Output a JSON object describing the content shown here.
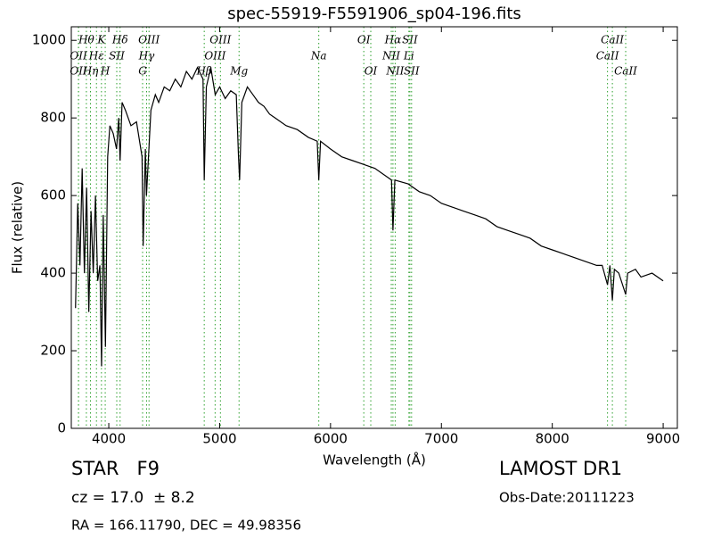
{
  "chart_data": {
    "type": "line",
    "title": "spec-55919-F5591906_sp04-196.fits",
    "x_label": "Wavelength (Å)",
    "y_label": "Flux (relative)",
    "xlim": [
      3662,
      9128
    ],
    "ylim": [
      0,
      1035
    ],
    "xticks": [
      4000,
      5000,
      6000,
      7000,
      8000,
      9000
    ],
    "yticks": [
      0,
      200,
      400,
      600,
      800,
      1000
    ],
    "series": [
      {
        "color": "#000000",
        "x": [
          3700,
          3720,
          3740,
          3760,
          3780,
          3800,
          3820,
          3840,
          3860,
          3880,
          3900,
          3920,
          3935,
          3950,
          3970,
          3990,
          4010,
          4040,
          4070,
          4090,
          4102,
          4120,
          4150,
          4200,
          4250,
          4300,
          4310,
          4330,
          4340,
          4380,
          4420,
          4450,
          4500,
          4550,
          4600,
          4650,
          4700,
          4750,
          4800,
          4850,
          4861,
          4880,
          4920,
          4960,
          5000,
          5050,
          5100,
          5150,
          5170,
          5180,
          5200,
          5250,
          5300,
          5350,
          5400,
          5450,
          5500,
          5600,
          5700,
          5800,
          5880,
          5894,
          5910,
          6000,
          6100,
          6200,
          6300,
          6400,
          6500,
          6550,
          6563,
          6580,
          6700,
          6800,
          6900,
          7000,
          7100,
          7200,
          7300,
          7400,
          7500,
          7600,
          7700,
          7800,
          7900,
          8000,
          8100,
          8200,
          8300,
          8400,
          8450,
          8498,
          8520,
          8542,
          8560,
          8600,
          8662,
          8680,
          8750,
          8800,
          8900,
          9000
        ],
        "values": [
          310,
          580,
          420,
          670,
          400,
          620,
          300,
          560,
          400,
          600,
          380,
          420,
          160,
          550,
          210,
          700,
          780,
          760,
          720,
          800,
          690,
          840,
          820,
          780,
          790,
          700,
          470,
          720,
          600,
          820,
          860,
          840,
          880,
          870,
          900,
          880,
          920,
          900,
          930,
          900,
          640,
          880,
          930,
          860,
          880,
          850,
          870,
          860,
          700,
          640,
          840,
          880,
          860,
          840,
          830,
          810,
          800,
          780,
          770,
          750,
          740,
          640,
          740,
          720,
          700,
          690,
          680,
          670,
          650,
          640,
          510,
          640,
          630,
          610,
          600,
          580,
          570,
          560,
          550,
          540,
          520,
          510,
          500,
          490,
          470,
          460,
          450,
          440,
          430,
          420,
          420,
          370,
          420,
          330,
          410,
          400,
          345,
          400,
          410,
          390,
          400,
          380
        ]
      }
    ],
    "line_color": "#2ca02c",
    "spectral_lines": [
      [
        {
          "wavelength": 3798,
          "label": "Hθ"
        },
        {
          "wavelength": 3934,
          "label": "K"
        },
        {
          "wavelength": 4102,
          "label": "Hδ"
        },
        {
          "wavelength": 4363,
          "label": "OIII"
        },
        {
          "wavelength": 5007,
          "label": "OIII"
        },
        {
          "wavelength": 6300,
          "label": "OI"
        },
        {
          "wavelength": 6563,
          "label": "Hα"
        },
        {
          "wavelength": 6716,
          "label": "SII"
        },
        {
          "wavelength": 8542,
          "label": "CaII"
        }
      ],
      [
        {
          "wavelength": 3727,
          "label": "OII"
        },
        {
          "wavelength": 3889,
          "label": "Hε"
        },
        {
          "wavelength": 4072,
          "label": "SII"
        },
        {
          "wavelength": 4341,
          "label": "Hγ"
        },
        {
          "wavelength": 4959,
          "label": "OIII"
        },
        {
          "wavelength": 5894,
          "label": "Na"
        },
        {
          "wavelength": 6548,
          "label": "NII"
        },
        {
          "wavelength": 6707,
          "label": "Li"
        },
        {
          "wavelength": 8498,
          "label": "CaII"
        }
      ],
      [
        {
          "wavelength": 3727,
          "label": "OII"
        },
        {
          "wavelength": 3835,
          "label": "Hη"
        },
        {
          "wavelength": 3968,
          "label": "H"
        },
        {
          "wavelength": 4305,
          "label": "G"
        },
        {
          "wavelength": 4861,
          "label": "Hβ"
        },
        {
          "wavelength": 5175,
          "label": "Mg"
        },
        {
          "wavelength": 6363,
          "label": "OI"
        },
        {
          "wavelength": 6583,
          "label": "NII"
        },
        {
          "wavelength": 6731,
          "label": "SII"
        },
        {
          "wavelength": 8662,
          "label": "CaII"
        }
      ]
    ]
  },
  "info": {
    "object": "STAR   F9",
    "redshift": "cz = 17.0  ± 8.2",
    "coords": "RA = 166.11790, DEC = 49.98356",
    "survey": "LAMOST DR1",
    "date": "Obs-Date:20111223"
  }
}
